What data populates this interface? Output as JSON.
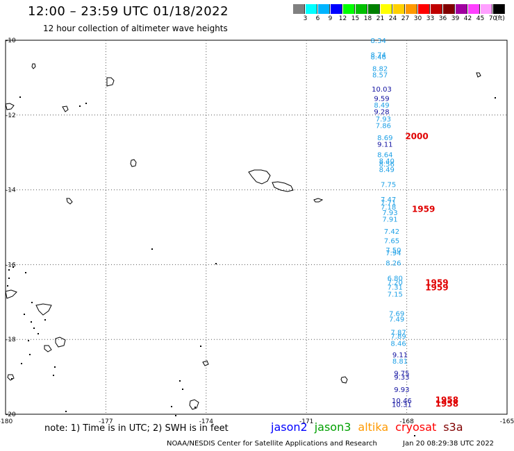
{
  "header": {
    "title": "12:00 – 23:59 UTC 01/18/2022",
    "subtitle": "12 hour collection of altimeter wave heights"
  },
  "scale": {
    "unit": "(ft)",
    "entries": [
      {
        "label": "3",
        "color": "#808080"
      },
      {
        "label": "6",
        "color": "#00ffff"
      },
      {
        "label": "9",
        "color": "#00b4ff"
      },
      {
        "label": "12",
        "color": "#0000ff"
      },
      {
        "label": "15",
        "color": "#00ff00"
      },
      {
        "label": "18",
        "color": "#00c000"
      },
      {
        "label": "21",
        "color": "#008000"
      },
      {
        "label": "24",
        "color": "#ffff00"
      },
      {
        "label": "27",
        "color": "#ffd000"
      },
      {
        "label": "30",
        "color": "#ff9900"
      },
      {
        "label": "33",
        "color": "#ff0000"
      },
      {
        "label": "36",
        "color": "#c00000"
      },
      {
        "label": "39",
        "color": "#800000"
      },
      {
        "label": "42",
        "color": "#a000a0"
      },
      {
        "label": "45",
        "color": "#ff40ff"
      },
      {
        "label": "70",
        "color": "#ffa0ff"
      },
      {
        "label": "",
        "color": "#000000"
      }
    ]
  },
  "axes": {
    "lat_labels": [
      "-10",
      "-12",
      "-14",
      "-16",
      "-18",
      "-20"
    ],
    "lon_labels": [
      "-180",
      "-177",
      "-174",
      "-171",
      "-168",
      "-165"
    ]
  },
  "observations": [
    {
      "v": "8.34",
      "c": "#1ea0e6",
      "lon": -168.85,
      "lat": -10.0
    },
    {
      "v": "8.74",
      "c": "#1ea0e6",
      "lon": -168.85,
      "lat": -10.38
    },
    {
      "v": "8.46",
      "c": "#1ea0e6",
      "lon": -168.85,
      "lat": -10.44
    },
    {
      "v": "8.82",
      "c": "#1ea0e6",
      "lon": -168.8,
      "lat": -10.75
    },
    {
      "v": "8.57",
      "c": "#1ea0e6",
      "lon": -168.8,
      "lat": -10.92
    },
    {
      "v": "10.03",
      "c": "#1010a0",
      "lon": -168.75,
      "lat": -11.3
    },
    {
      "v": "9.59",
      "c": "#1010a0",
      "lon": -168.75,
      "lat": -11.55
    },
    {
      "v": "8.49",
      "c": "#1ea0e6",
      "lon": -168.75,
      "lat": -11.73
    },
    {
      "v": "9.28",
      "c": "#1010a0",
      "lon": -168.75,
      "lat": -11.9
    },
    {
      "v": "7.93",
      "c": "#1ea0e6",
      "lon": -168.7,
      "lat": -12.1
    },
    {
      "v": "7.86",
      "c": "#1ea0e6",
      "lon": -168.7,
      "lat": -12.27
    },
    {
      "v": "8.69",
      "c": "#1ea0e6",
      "lon": -168.65,
      "lat": -12.6
    },
    {
      "v": "9.11",
      "c": "#1010a0",
      "lon": -168.65,
      "lat": -12.77
    },
    {
      "v": "8.64",
      "c": "#1ea0e6",
      "lon": -168.65,
      "lat": -13.05
    },
    {
      "v": "8.40",
      "c": "#1ea0e6",
      "lon": -168.6,
      "lat": -13.22
    },
    {
      "v": "8.56",
      "c": "#1ea0e6",
      "lon": -168.6,
      "lat": -13.3
    },
    {
      "v": "8.49",
      "c": "#1ea0e6",
      "lon": -168.6,
      "lat": -13.45
    },
    {
      "v": "7.75",
      "c": "#1ea0e6",
      "lon": -168.55,
      "lat": -13.85
    },
    {
      "v": "7.47",
      "c": "#1ea0e6",
      "lon": -168.55,
      "lat": -14.25
    },
    {
      "v": "7.71",
      "c": "#1ea0e6",
      "lon": -168.55,
      "lat": -14.33
    },
    {
      "v": "7.18",
      "c": "#1ea0e6",
      "lon": -168.55,
      "lat": -14.45
    },
    {
      "v": "7.93",
      "c": "#1ea0e6",
      "lon": -168.5,
      "lat": -14.6
    },
    {
      "v": "7.91",
      "c": "#1ea0e6",
      "lon": -168.5,
      "lat": -14.78
    },
    {
      "v": "7.42",
      "c": "#1ea0e6",
      "lon": -168.45,
      "lat": -15.1
    },
    {
      "v": "7.65",
      "c": "#1ea0e6",
      "lon": -168.45,
      "lat": -15.35
    },
    {
      "v": "7.50",
      "c": "#1ea0e6",
      "lon": -168.4,
      "lat": -15.6
    },
    {
      "v": "7.94",
      "c": "#1ea0e6",
      "lon": -168.4,
      "lat": -15.68
    },
    {
      "v": "8.26",
      "c": "#1ea0e6",
      "lon": -168.4,
      "lat": -15.95
    },
    {
      "v": "6.80",
      "c": "#1ea0e6",
      "lon": -168.35,
      "lat": -16.35
    },
    {
      "v": "7.20",
      "c": "#1ea0e6",
      "lon": -168.35,
      "lat": -16.47
    },
    {
      "v": "7.31",
      "c": "#1ea0e6",
      "lon": -168.35,
      "lat": -16.6
    },
    {
      "v": "7.15",
      "c": "#1ea0e6",
      "lon": -168.35,
      "lat": -16.78
    },
    {
      "v": "7.69",
      "c": "#1ea0e6",
      "lon": -168.3,
      "lat": -17.3
    },
    {
      "v": "7.49",
      "c": "#1ea0e6",
      "lon": -168.3,
      "lat": -17.45
    },
    {
      "v": "7.87",
      "c": "#1ea0e6",
      "lon": -168.25,
      "lat": -17.8
    },
    {
      "v": "7.89",
      "c": "#1ea0e6",
      "lon": -168.25,
      "lat": -17.9
    },
    {
      "v": "8.46",
      "c": "#1ea0e6",
      "lon": -168.25,
      "lat": -18.1
    },
    {
      "v": "9.11",
      "c": "#1010a0",
      "lon": -168.2,
      "lat": -18.4
    },
    {
      "v": "8.81",
      "c": "#1ea0e6",
      "lon": -168.2,
      "lat": -18.57
    },
    {
      "v": "9.75",
      "c": "#1010a0",
      "lon": -168.15,
      "lat": -18.9
    },
    {
      "v": "9.33",
      "c": "#1010a0",
      "lon": -168.15,
      "lat": -19.0
    },
    {
      "v": "9.93",
      "c": "#1010a0",
      "lon": -168.15,
      "lat": -19.33
    },
    {
      "v": "10.46",
      "c": "#1010a0",
      "lon": -168.15,
      "lat": -19.63
    },
    {
      "v": "10.31",
      "c": "#1010a0",
      "lon": -168.15,
      "lat": -19.73
    }
  ],
  "time_tags": [
    {
      "t": "2000",
      "lon": -167.7,
      "lat": -12.55
    },
    {
      "t": "1959",
      "lon": -167.5,
      "lat": -14.5
    },
    {
      "t": "1959",
      "lon": -167.1,
      "lat": -16.47
    },
    {
      "t": "1959",
      "lon": -167.1,
      "lat": -16.6
    },
    {
      "t": "1958",
      "lon": -166.8,
      "lat": -19.6
    },
    {
      "t": "1958",
      "lon": -166.8,
      "lat": -19.7
    }
  ],
  "footer": {
    "note": "note:  1) Time is in UTC;  2) SWH is in feet",
    "satellites": [
      {
        "name": "jason2",
        "color": "#0000ff"
      },
      {
        "name": "jason3",
        "color": "#00a000"
      },
      {
        "name": "altika",
        "color": "#ff9900"
      },
      {
        "name": "cryosat",
        "color": "#ff0000"
      },
      {
        "name": "s3a",
        "color": "#800000"
      }
    ],
    "credit": "NOAA/NESDIS Center for Satellite Applications and Research",
    "timestamp": "Jan 20 08:29:38 UTC 2022"
  }
}
